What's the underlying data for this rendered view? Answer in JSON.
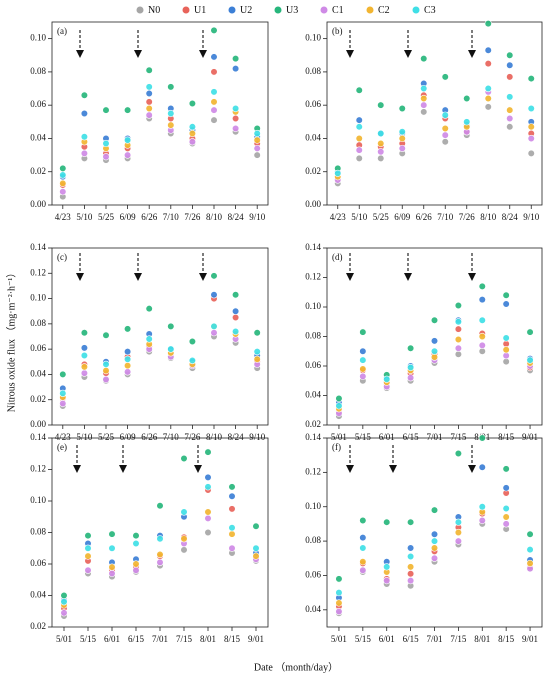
{
  "ylabel": "Nitrous oxide flux （mg·m⁻²·h⁻¹）",
  "xlabel": "Date （month/day）",
  "legend": [
    {
      "name": "N0",
      "color": "#a6a6a6"
    },
    {
      "name": "U1",
      "color": "#e8635a"
    },
    {
      "name": "U2",
      "color": "#3c7fd6"
    },
    {
      "name": "U3",
      "color": "#27b67c"
    },
    {
      "name": "C1",
      "color": "#cf8ae6"
    },
    {
      "name": "C2",
      "color": "#f2b531"
    },
    {
      "name": "C3",
      "color": "#3fdfe6"
    }
  ],
  "chart_data": [
    {
      "type": "scatter",
      "label": "(a)",
      "categories": [
        "4/23",
        "5/10",
        "5/25",
        "6/09",
        "6/26",
        "7/10",
        "7/26",
        "8/10",
        "8/24",
        "9/10"
      ],
      "ylim": [
        0,
        0.11
      ],
      "yticks": [
        {
          "value": 0,
          "label": "0.00"
        },
        {
          "value": 0.02,
          "label": "0.02"
        },
        {
          "value": 0.04,
          "label": "0.04"
        },
        {
          "value": 0.06,
          "label": "0.06"
        },
        {
          "value": 0.08,
          "label": "0.08"
        },
        {
          "value": 0.1,
          "label": "0.10"
        }
      ],
      "series": [
        {
          "values": [
            0.005,
            0.028,
            0.027,
            0.028,
            0.052,
            0.043,
            0.037,
            0.051,
            0.044,
            0.03
          ]
        },
        {
          "values": [
            0.012,
            0.035,
            0.031,
            0.034,
            0.062,
            0.052,
            0.04,
            0.08,
            0.052,
            0.037
          ]
        },
        {
          "values": [
            0.017,
            0.055,
            0.04,
            0.04,
            0.067,
            0.058,
            0.045,
            0.089,
            0.082,
            0.041
          ]
        },
        {
          "values": [
            0.022,
            0.066,
            0.057,
            0.057,
            0.081,
            0.071,
            0.061,
            0.105,
            0.088,
            0.046
          ]
        },
        {
          "values": [
            0.008,
            0.031,
            0.029,
            0.03,
            0.054,
            0.045,
            0.038,
            0.057,
            0.046,
            0.034
          ]
        },
        {
          "values": [
            0.013,
            0.038,
            0.034,
            0.036,
            0.058,
            0.048,
            0.043,
            0.062,
            0.056,
            0.039
          ]
        },
        {
          "values": [
            0.018,
            0.041,
            0.037,
            0.039,
            0.071,
            0.055,
            0.047,
            0.068,
            0.058,
            0.043
          ]
        }
      ]
    },
    {
      "type": "scatter",
      "label": "(b)",
      "categories": [
        "4/23",
        "5/10",
        "5/25",
        "6/09",
        "6/26",
        "7/10",
        "7/26",
        "8/10",
        "8/24",
        "9/10"
      ],
      "ylim": [
        0,
        0.11
      ],
      "yticks": [
        {
          "value": 0,
          "label": "0.00"
        },
        {
          "value": 0.02,
          "label": "0.02"
        },
        {
          "value": 0.04,
          "label": "0.04"
        },
        {
          "value": 0.06,
          "label": "0.06"
        },
        {
          "value": 0.08,
          "label": "0.08"
        },
        {
          "value": 0.1,
          "label": "0.10"
        }
      ],
      "series": [
        {
          "values": [
            0.013,
            0.028,
            0.028,
            0.031,
            0.056,
            0.038,
            0.042,
            0.059,
            0.047,
            0.031
          ]
        },
        {
          "values": [
            0.016,
            0.036,
            0.035,
            0.037,
            0.066,
            0.052,
            0.044,
            0.085,
            0.077,
            0.043
          ]
        },
        {
          "values": [
            0.02,
            0.051,
            0.043,
            0.043,
            0.073,
            0.057,
            0.048,
            0.093,
            0.084,
            0.05
          ]
        },
        {
          "values": [
            0.022,
            0.069,
            0.06,
            0.058,
            0.088,
            0.077,
            0.064,
            0.109,
            0.09,
            0.076
          ]
        },
        {
          "values": [
            0.015,
            0.033,
            0.032,
            0.034,
            0.06,
            0.042,
            0.044,
            0.068,
            0.052,
            0.04
          ]
        },
        {
          "values": [
            0.017,
            0.04,
            0.037,
            0.04,
            0.064,
            0.046,
            0.047,
            0.064,
            0.057,
            0.047
          ]
        },
        {
          "values": [
            0.019,
            0.047,
            0.043,
            0.044,
            0.07,
            0.054,
            0.05,
            0.07,
            0.065,
            0.058
          ]
        }
      ]
    },
    {
      "type": "scatter",
      "label": "(c)",
      "categories": [
        "4/23",
        "5/10",
        "5/25",
        "6/09",
        "6/26",
        "7/10",
        "7/26",
        "8/10",
        "8/24",
        "9/10"
      ],
      "ylim": [
        0,
        0.14
      ],
      "yticks": [
        {
          "value": 0,
          "label": "0.00"
        },
        {
          "value": 0.02,
          "label": "0.02"
        },
        {
          "value": 0.04,
          "label": "0.04"
        },
        {
          "value": 0.06,
          "label": "0.06"
        },
        {
          "value": 0.08,
          "label": "0.08"
        },
        {
          "value": 0.1,
          "label": "0.10"
        },
        {
          "value": 0.12,
          "label": "0.12"
        },
        {
          "value": 0.14,
          "label": "0.14"
        }
      ],
      "series": [
        {
          "values": [
            0.015,
            0.038,
            0.035,
            0.04,
            0.058,
            0.053,
            0.045,
            0.07,
            0.065,
            0.045
          ]
        },
        {
          "values": [
            0.021,
            0.048,
            0.041,
            0.054,
            0.062,
            0.056,
            0.049,
            0.1,
            0.085,
            0.05
          ]
        },
        {
          "values": [
            0.029,
            0.061,
            0.05,
            0.058,
            0.072,
            0.06,
            0.05,
            0.103,
            0.09,
            0.055
          ]
        },
        {
          "values": [
            0.04,
            0.073,
            0.071,
            0.076,
            0.092,
            0.078,
            0.066,
            0.118,
            0.103,
            0.073
          ]
        },
        {
          "values": [
            0.017,
            0.041,
            0.036,
            0.042,
            0.06,
            0.054,
            0.047,
            0.073,
            0.068,
            0.048
          ]
        },
        {
          "values": [
            0.022,
            0.046,
            0.043,
            0.047,
            0.064,
            0.057,
            0.048,
            0.078,
            0.072,
            0.052
          ]
        },
        {
          "values": [
            0.025,
            0.055,
            0.048,
            0.052,
            0.068,
            0.06,
            0.051,
            0.078,
            0.074,
            0.058
          ]
        }
      ]
    },
    {
      "type": "scatter",
      "label": "(d)",
      "categories": [
        "5/01",
        "5/15",
        "6/01",
        "6/15",
        "7/01",
        "7/15",
        "8/01",
        "8/15",
        "9/01"
      ],
      "ylim": [
        0.02,
        0.14
      ],
      "yticks": [
        {
          "value": 0.02,
          "label": "0.02"
        },
        {
          "value": 0.04,
          "label": "0.04"
        },
        {
          "value": 0.06,
          "label": "0.06"
        },
        {
          "value": 0.08,
          "label": "0.08"
        },
        {
          "value": 0.1,
          "label": "0.10"
        },
        {
          "value": 0.12,
          "label": "0.12"
        },
        {
          "value": 0.14,
          "label": "0.14"
        }
      ],
      "series": [
        {
          "values": [
            0.026,
            0.05,
            0.045,
            0.05,
            0.062,
            0.068,
            0.07,
            0.063,
            0.057
          ]
        },
        {
          "values": [
            0.029,
            0.057,
            0.048,
            0.055,
            0.068,
            0.085,
            0.082,
            0.075,
            0.059
          ]
        },
        {
          "values": [
            0.035,
            0.07,
            0.052,
            0.06,
            0.077,
            0.091,
            0.105,
            0.102,
            0.065
          ]
        },
        {
          "values": [
            0.038,
            0.083,
            0.054,
            0.072,
            0.091,
            0.101,
            0.114,
            0.108,
            0.083
          ]
        },
        {
          "values": [
            0.028,
            0.053,
            0.046,
            0.052,
            0.064,
            0.072,
            0.074,
            0.067,
            0.06
          ]
        },
        {
          "values": [
            0.031,
            0.058,
            0.049,
            0.057,
            0.066,
            0.078,
            0.08,
            0.071,
            0.062
          ]
        },
        {
          "values": [
            0.033,
            0.064,
            0.051,
            0.059,
            0.07,
            0.09,
            0.091,
            0.079,
            0.064
          ]
        }
      ]
    },
    {
      "type": "scatter",
      "label": "(e)",
      "categories": [
        "5/01",
        "5/15",
        "6/01",
        "6/15",
        "7/01",
        "7/15",
        "8/01",
        "8/15",
        "9/01"
      ],
      "ylim": [
        0.02,
        0.14
      ],
      "yticks": [
        {
          "value": 0.02,
          "label": "0.02"
        },
        {
          "value": 0.04,
          "label": "0.04"
        },
        {
          "value": 0.06,
          "label": "0.06"
        },
        {
          "value": 0.08,
          "label": "0.08"
        },
        {
          "value": 0.1,
          "label": "0.10"
        },
        {
          "value": 0.12,
          "label": "0.12"
        },
        {
          "value": 0.14,
          "label": "0.14"
        }
      ],
      "series": [
        {
          "values": [
            0.027,
            0.054,
            0.052,
            0.055,
            0.059,
            0.069,
            0.08,
            0.067,
            0.062
          ]
        },
        {
          "values": [
            0.032,
            0.062,
            0.056,
            0.058,
            0.065,
            0.077,
            0.107,
            0.095,
            0.064
          ]
        },
        {
          "values": [
            0.037,
            0.073,
            0.061,
            0.063,
            0.078,
            0.09,
            0.115,
            0.103,
            0.067
          ]
        },
        {
          "values": [
            0.04,
            0.078,
            0.079,
            0.078,
            0.097,
            0.127,
            0.131,
            0.109,
            0.084
          ]
        },
        {
          "values": [
            0.029,
            0.056,
            0.054,
            0.056,
            0.061,
            0.073,
            0.089,
            0.07,
            0.063
          ]
        },
        {
          "values": [
            0.034,
            0.065,
            0.058,
            0.06,
            0.066,
            0.076,
            0.093,
            0.079,
            0.065
          ]
        },
        {
          "values": [
            0.036,
            0.07,
            0.07,
            0.073,
            0.076,
            0.093,
            0.109,
            0.083,
            0.07
          ]
        }
      ]
    },
    {
      "type": "scatter",
      "label": "(f)",
      "categories": [
        "5/01",
        "5/15",
        "6/01",
        "6/15",
        "7/01",
        "7/15",
        "8/01",
        "8/15",
        "9/01"
      ],
      "ylim": [
        0.03,
        0.14
      ],
      "yticks": [
        {
          "value": 0.04,
          "label": "0.04"
        },
        {
          "value": 0.06,
          "label": "0.06"
        },
        {
          "value": 0.08,
          "label": "0.08"
        },
        {
          "value": 0.1,
          "label": "0.10"
        },
        {
          "value": 0.12,
          "label": "0.12"
        },
        {
          "value": 0.14,
          "label": "0.14"
        }
      ],
      "series": [
        {
          "values": [
            0.038,
            0.062,
            0.055,
            0.054,
            0.068,
            0.078,
            0.09,
            0.087,
            0.064
          ]
        },
        {
          "values": [
            0.042,
            0.067,
            0.058,
            0.061,
            0.074,
            0.088,
            0.096,
            0.108,
            0.065
          ]
        },
        {
          "values": [
            0.047,
            0.082,
            0.068,
            0.076,
            0.084,
            0.094,
            0.123,
            0.111,
            0.069
          ]
        },
        {
          "values": [
            0.058,
            0.092,
            0.091,
            0.091,
            0.098,
            0.131,
            0.14,
            0.122,
            0.084
          ]
        },
        {
          "values": [
            0.039,
            0.063,
            0.057,
            0.057,
            0.07,
            0.08,
            0.092,
            0.09,
            0.064
          ]
        },
        {
          "values": [
            0.044,
            0.068,
            0.062,
            0.065,
            0.076,
            0.085,
            0.097,
            0.094,
            0.067
          ]
        },
        {
          "values": [
            0.05,
            0.076,
            0.065,
            0.071,
            0.08,
            0.091,
            0.1,
            0.099,
            0.075
          ]
        }
      ]
    }
  ]
}
